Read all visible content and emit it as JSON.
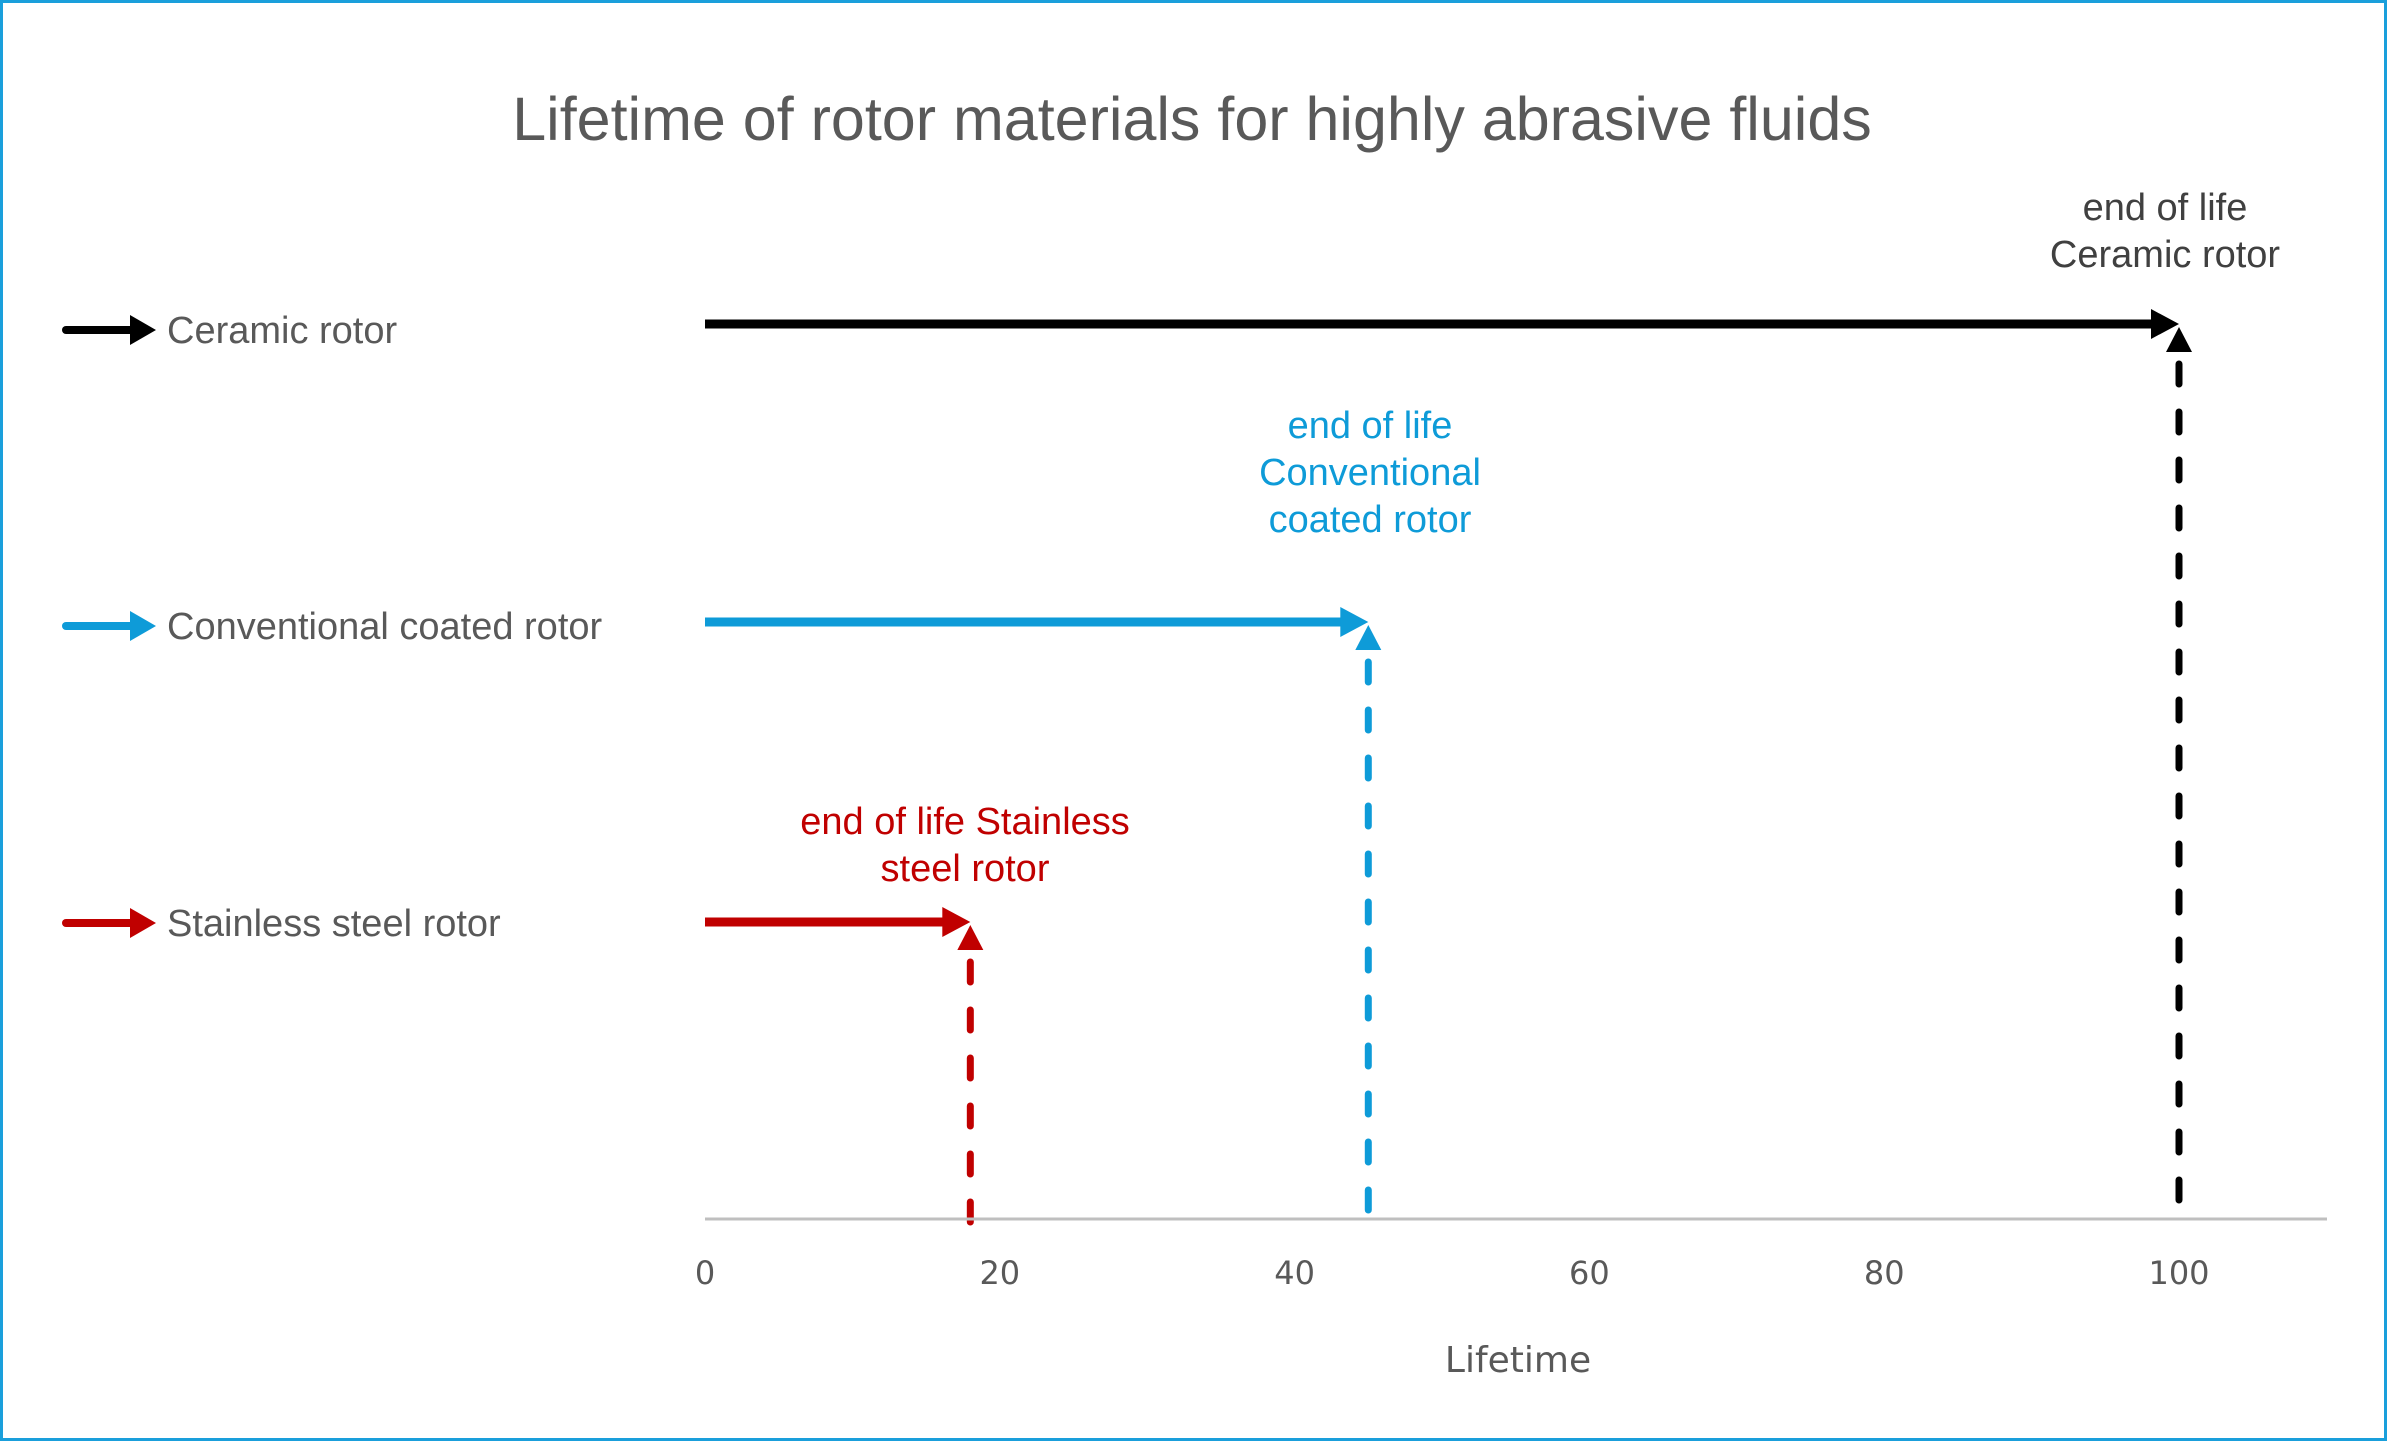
{
  "chart_data": {
    "type": "diagram-timeline",
    "title": "Lifetime of rotor materials for highly abrasive fluids",
    "xlabel": "Lifetime",
    "ylabel": "",
    "xlim": [
      0,
      110
    ],
    "x_ticks": [
      0,
      20,
      40,
      60,
      80,
      100
    ],
    "grid": false,
    "legend_position": "left",
    "series": [
      {
        "name": "Ceramic rotor",
        "color": "#000000",
        "start": 0,
        "end": 100,
        "annotation": [
          "end of life",
          "Ceramic rotor"
        ]
      },
      {
        "name": "Conventional coated rotor",
        "color": "#0E9BD8",
        "start": 0,
        "end": 45,
        "annotation": [
          "end of life",
          "Conventional",
          "coated rotor"
        ]
      },
      {
        "name": "Stainless steel rotor",
        "color": "#C00000",
        "start": 0,
        "end": 18,
        "annotation": [
          "end of life Stainless",
          "steel rotor"
        ]
      }
    ]
  },
  "colors": {
    "border": "#1A9FDB",
    "text": "#595959",
    "axis": "#BFBFBF",
    "annotation_black": "#404040"
  }
}
